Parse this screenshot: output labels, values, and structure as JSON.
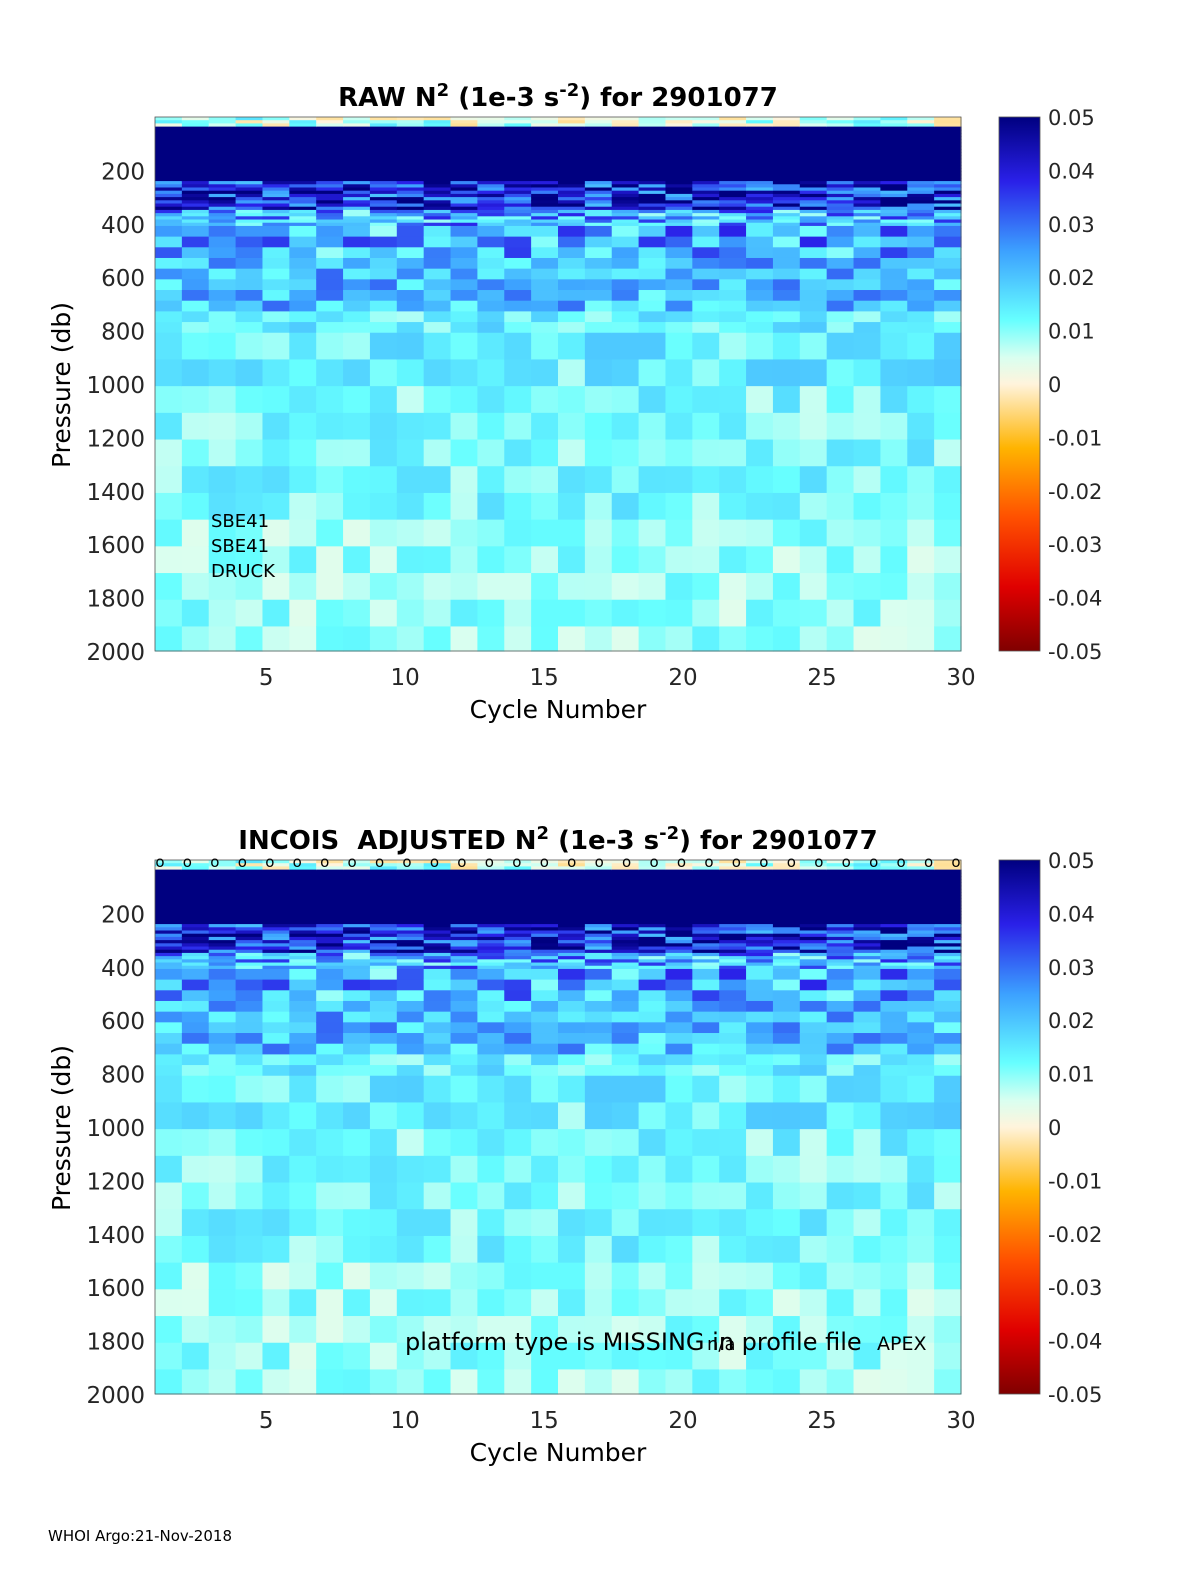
{
  "chart_data": [
    {
      "type": "heatmap",
      "title_prefix": "RAW N",
      "title_suffix": " (1e-3 s",
      "title_end": ") for 2901077",
      "title_sup1": "2",
      "title_sup2": "-2",
      "xlabel": "Cycle Number",
      "ylabel": "Pressure (db)",
      "xlim": [
        1,
        30
      ],
      "ylim": [
        0,
        2000
      ],
      "x_ticks": [
        "5",
        "10",
        "15",
        "20",
        "25",
        "30"
      ],
      "y_ticks": [
        "200",
        "400",
        "600",
        "800",
        "1000",
        "1200",
        "1400",
        "1600",
        "1800",
        "2000"
      ],
      "clim": [
        -0.05,
        0.05
      ],
      "colorbar_ticks": [
        "0.05",
        "0.04",
        "0.03",
        "0.02",
        "0.01",
        "0",
        "-0.01",
        "-0.02",
        "-0.03",
        "-0.04",
        "-0.05"
      ],
      "annotations": [
        "SBE41",
        "SBE41",
        "DRUCK"
      ],
      "approx_profile_values": {
        "depth_bands_db": [
          "0-50",
          "50-250",
          "250-350",
          "350-500",
          "500-700",
          "700-1000",
          "1000-1500",
          "1500-2000"
        ],
        "typical_N2": [
          0.0,
          0.05,
          0.035,
          0.018,
          0.016,
          0.011,
          0.009,
          0.007
        ]
      }
    },
    {
      "type": "heatmap",
      "title_prefix": "INCOIS  ADJUSTED N",
      "title_suffix": " (1e-3 s",
      "title_end": ") for 2901077",
      "title_sup1": "2",
      "title_sup2": "-2",
      "xlabel": "Cycle Number",
      "ylabel": "Pressure (db)",
      "xlim": [
        1,
        30
      ],
      "ylim": [
        0,
        2000
      ],
      "x_ticks": [
        "5",
        "10",
        "15",
        "20",
        "25",
        "30"
      ],
      "y_ticks": [
        "200",
        "400",
        "600",
        "800",
        "1000",
        "1200",
        "1400",
        "1600",
        "1800",
        "2000"
      ],
      "clim": [
        -0.05,
        0.05
      ],
      "colorbar_ticks": [
        "0.05",
        "0.04",
        "0.03",
        "0.02",
        "0.01",
        "0",
        "-0.01",
        "-0.02",
        "-0.03",
        "-0.04",
        "-0.05"
      ],
      "marker_symbol": "o",
      "annotation_platform": "platform type is MISSING in profile file",
      "annotation_na": "n/a",
      "annotation_apex": "APEX"
    }
  ],
  "footer": "WHOI Argo:21-Nov-2018"
}
